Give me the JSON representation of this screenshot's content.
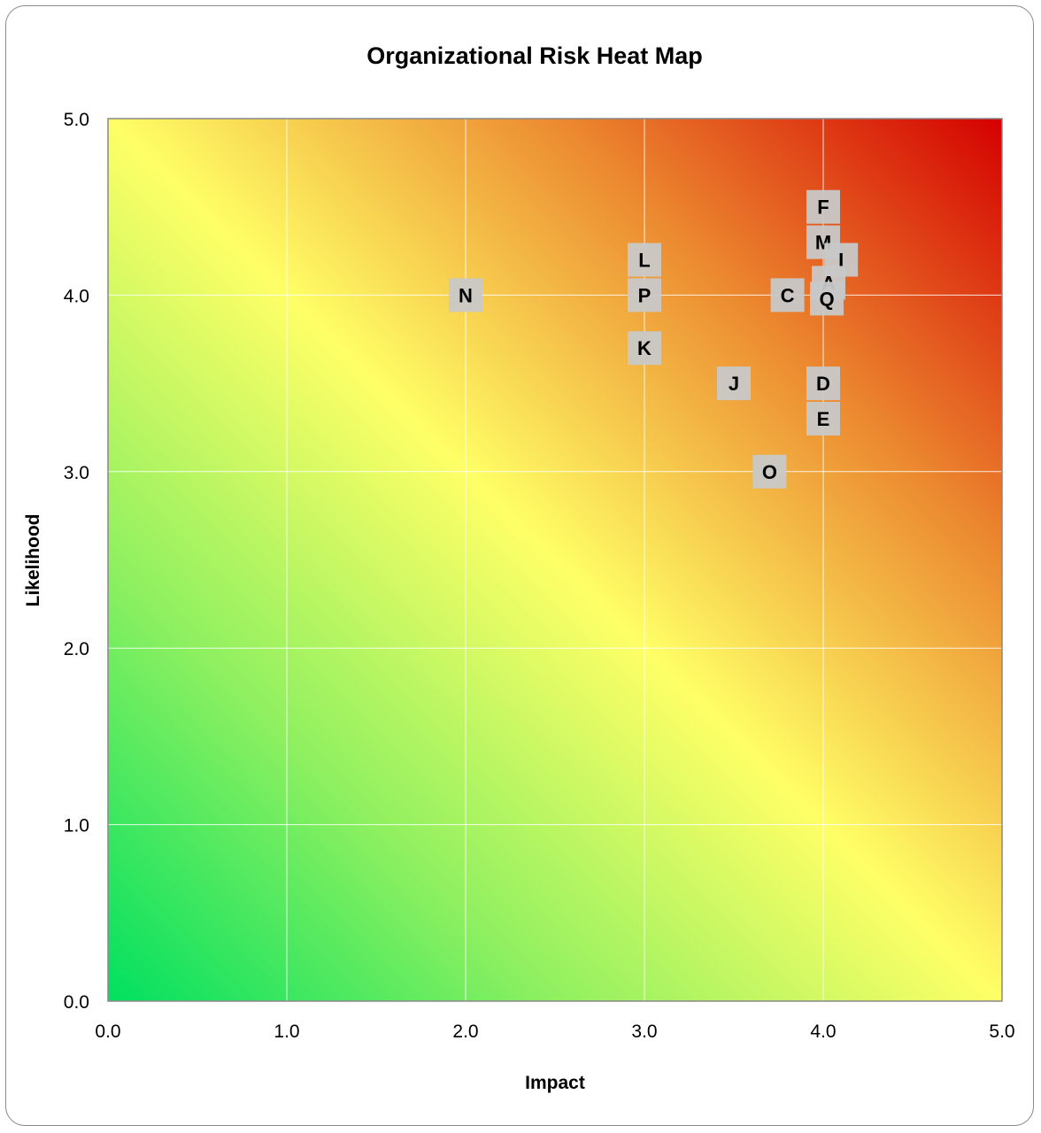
{
  "chart_data": {
    "type": "scatter",
    "title": "Organizational Risk Heat Map",
    "xlabel": "Impact",
    "ylabel": "Likelihood",
    "xlim": [
      0,
      5
    ],
    "ylim": [
      0,
      5
    ],
    "xticks": [
      "0.0",
      "1.0",
      "2.0",
      "3.0",
      "4.0",
      "5.0"
    ],
    "yticks": [
      "0.0",
      "1.0",
      "2.0",
      "3.0",
      "4.0",
      "5.0"
    ],
    "grid": true,
    "background": "diagonal gradient from green (low impact, low likelihood) through yellow to red (high impact, high likelihood)",
    "colors": {
      "low": "#00e060",
      "mid": "#ffff66",
      "high": "#d40000",
      "label_box": "#c8c8c8"
    },
    "points": [
      {
        "label": "N",
        "x": 2.0,
        "y": 4.0
      },
      {
        "label": "L",
        "x": 3.0,
        "y": 4.2
      },
      {
        "label": "P",
        "x": 3.0,
        "y": 4.0
      },
      {
        "label": "K",
        "x": 3.0,
        "y": 3.7
      },
      {
        "label": "J",
        "x": 3.5,
        "y": 3.5
      },
      {
        "label": "O",
        "x": 3.7,
        "y": 3.0
      },
      {
        "label": "C",
        "x": 3.8,
        "y": 4.0
      },
      {
        "label": "F",
        "x": 4.0,
        "y": 4.5
      },
      {
        "label": "M",
        "x": 4.0,
        "y": 4.3
      },
      {
        "label": "I",
        "x": 4.1,
        "y": 4.2
      },
      {
        "label": "A",
        "x": 4.03,
        "y": 4.07
      },
      {
        "label": "Q",
        "x": 4.02,
        "y": 3.98
      },
      {
        "label": "D",
        "x": 4.0,
        "y": 3.5
      },
      {
        "label": "E",
        "x": 4.0,
        "y": 3.3
      }
    ]
  }
}
